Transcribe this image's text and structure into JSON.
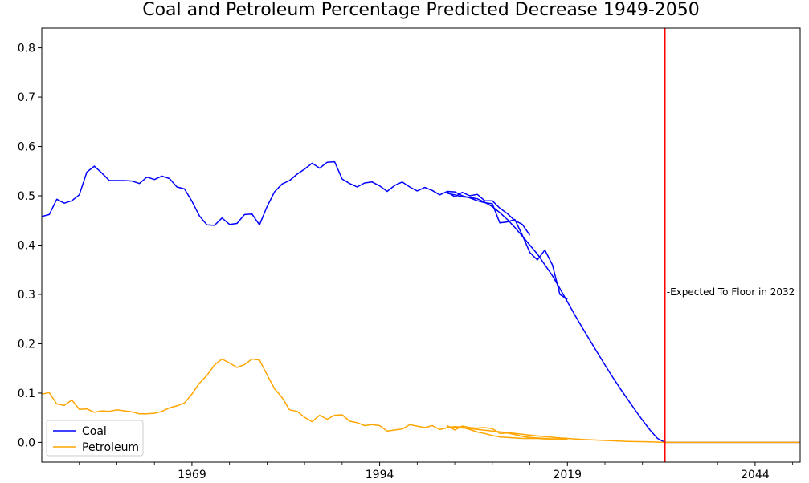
{
  "chart_data": {
    "type": "line",
    "title": "Coal and Petroleum Percentage Predicted Decrease 1949-2050",
    "xlabel": "",
    "ylabel": "",
    "xlim": [
      1949,
      2050
    ],
    "ylim": [
      -0.04,
      0.84
    ],
    "xticks": [
      1969,
      1994,
      2019,
      2044
    ],
    "yticks": [
      0.0,
      0.1,
      0.2,
      0.3,
      0.4,
      0.5,
      0.6,
      0.7,
      0.8
    ],
    "ytick_labels": [
      "0.0",
      "0.1",
      "0.2",
      "0.3",
      "0.4",
      "0.5",
      "0.6",
      "0.7",
      "0.8"
    ],
    "grid": false,
    "legend": "lower-left",
    "series": [
      {
        "name": "Coal",
        "color": "#0000ff",
        "segments": [
          {
            "x": [
              1949,
              1950,
              1951,
              1952,
              1953,
              1954,
              1955,
              1956,
              1957,
              1958,
              1959,
              1960,
              1961,
              1962,
              1963,
              1964,
              1965,
              1966,
              1967,
              1968,
              1969,
              1970,
              1971,
              1972,
              1973,
              1974,
              1975,
              1976,
              1977,
              1978,
              1979,
              1980,
              1981,
              1982,
              1983,
              1984,
              1985,
              1986,
              1987,
              1988,
              1989,
              1990,
              1991,
              1992,
              1993,
              1994,
              1995,
              1996,
              1997,
              1998,
              1999,
              2000,
              2001,
              2002,
              2003,
              2004,
              2005,
              2006,
              2007,
              2008,
              2009,
              2010,
              2011,
              2012,
              2013,
              2014,
              2015,
              2016,
              2017,
              2018,
              2019
            ],
            "y": [
              0.458,
              0.462,
              0.493,
              0.485,
              0.49,
              0.502,
              0.548,
              0.56,
              0.546,
              0.531,
              0.531,
              0.531,
              0.53,
              0.525,
              0.538,
              0.533,
              0.54,
              0.535,
              0.518,
              0.514,
              0.489,
              0.459,
              0.441,
              0.44,
              0.455,
              0.442,
              0.444,
              0.462,
              0.463,
              0.441,
              0.478,
              0.508,
              0.524,
              0.531,
              0.544,
              0.554,
              0.566,
              0.556,
              0.568,
              0.569,
              0.534,
              0.525,
              0.518,
              0.526,
              0.528,
              0.52,
              0.509,
              0.521,
              0.528,
              0.518,
              0.51,
              0.517,
              0.511,
              0.502,
              0.509,
              0.508,
              0.5,
              0.496,
              0.49,
              0.486,
              0.484,
              0.445,
              0.447,
              0.452,
              0.42,
              0.385,
              0.37,
              0.39,
              0.36,
              0.3,
              0.29
            ]
          },
          {
            "x": [
              2003,
              2004,
              2005,
              2006,
              2007,
              2008,
              2009,
              2010,
              2011,
              2012,
              2013,
              2014
            ],
            "y": [
              0.508,
              0.498,
              0.507,
              0.5,
              0.503,
              0.49,
              0.49,
              0.475,
              0.464,
              0.45,
              0.442,
              0.42
            ]
          },
          {
            "x": [
              2003,
              2004,
              2005,
              2006,
              2007,
              2008,
              2009,
              2010,
              2011,
              2012,
              2013,
              2014,
              2015,
              2016,
              2017,
              2018,
              2019,
              2020,
              2021,
              2022,
              2023,
              2024,
              2025,
              2026,
              2027,
              2028,
              2029,
              2030,
              2031,
              2032
            ],
            "y": [
              0.505,
              0.502,
              0.498,
              0.497,
              0.494,
              0.487,
              0.478,
              0.466,
              0.452,
              0.436,
              0.418,
              0.4,
              0.382,
              0.36,
              0.338,
              0.312,
              0.285,
              0.258,
              0.232,
              0.207,
              0.182,
              0.157,
              0.133,
              0.11,
              0.088,
              0.066,
              0.045,
              0.025,
              0.008,
              0.0
            ]
          },
          {
            "x": [
              2032,
              2035,
              2040,
              2045,
              2050
            ],
            "y": [
              0.0,
              0.0,
              0.0,
              0.0,
              0.0
            ]
          }
        ]
      },
      {
        "name": "Petroleum",
        "color": "#ffa500",
        "segments": [
          {
            "x": [
              1949,
              1950,
              1951,
              1952,
              1953,
              1954,
              1955,
              1956,
              1957,
              1958,
              1959,
              1960,
              1961,
              1962,
              1963,
              1964,
              1965,
              1966,
              1967,
              1968,
              1969,
              1970,
              1971,
              1972,
              1973,
              1974,
              1975,
              1976,
              1977,
              1978,
              1979,
              1980,
              1981,
              1982,
              1983,
              1984,
              1985,
              1986,
              1987,
              1988,
              1989,
              1990,
              1991,
              1992,
              1993,
              1994,
              1995,
              1996,
              1997,
              1998,
              1999,
              2000,
              2001,
              2002,
              2003,
              2004,
              2005,
              2006,
              2007,
              2008,
              2009,
              2010,
              2011,
              2012,
              2013,
              2014,
              2015,
              2016,
              2017,
              2018,
              2019
            ],
            "y": [
              0.098,
              0.101,
              0.078,
              0.075,
              0.086,
              0.067,
              0.068,
              0.061,
              0.064,
              0.063,
              0.066,
              0.064,
              0.062,
              0.058,
              0.058,
              0.059,
              0.063,
              0.07,
              0.074,
              0.08,
              0.098,
              0.12,
              0.136,
              0.157,
              0.169,
              0.161,
              0.152,
              0.158,
              0.169,
              0.167,
              0.137,
              0.109,
              0.091,
              0.066,
              0.063,
              0.051,
              0.042,
              0.055,
              0.047,
              0.055,
              0.056,
              0.043,
              0.04,
              0.034,
              0.036,
              0.034,
              0.023,
              0.025,
              0.027,
              0.036,
              0.033,
              0.03,
              0.034,
              0.026,
              0.03,
              0.032,
              0.031,
              0.026,
              0.021,
              0.018,
              0.014,
              0.011,
              0.01,
              0.009,
              0.008,
              0.008,
              0.008,
              0.007,
              0.007,
              0.007,
              0.006
            ]
          },
          {
            "x": [
              2003,
              2004,
              2005,
              2006,
              2007,
              2008,
              2009,
              2010,
              2011,
              2012,
              2013,
              2014,
              2015,
              2016,
              2017,
              2018,
              2019
            ],
            "y": [
              0.034,
              0.025,
              0.033,
              0.03,
              0.029,
              0.03,
              0.028,
              0.018,
              0.019,
              0.016,
              0.012,
              0.01,
              0.009,
              0.008,
              0.007,
              0.007,
              0.007
            ]
          },
          {
            "x": [
              2003,
              2006,
              2009,
              2012,
              2015,
              2018,
              2021,
              2024,
              2027,
              2030,
              2032,
              2035,
              2040,
              2045,
              2050
            ],
            "y": [
              0.032,
              0.028,
              0.023,
              0.018,
              0.013,
              0.009,
              0.006,
              0.004,
              0.002,
              0.001,
              0.0,
              0.0,
              0.0,
              0.0,
              0.0
            ]
          }
        ]
      }
    ],
    "vline": {
      "x": 2032,
      "color": "#ff0000",
      "label": "Expected To Floor in 2032",
      "label_y": 0.305
    }
  }
}
